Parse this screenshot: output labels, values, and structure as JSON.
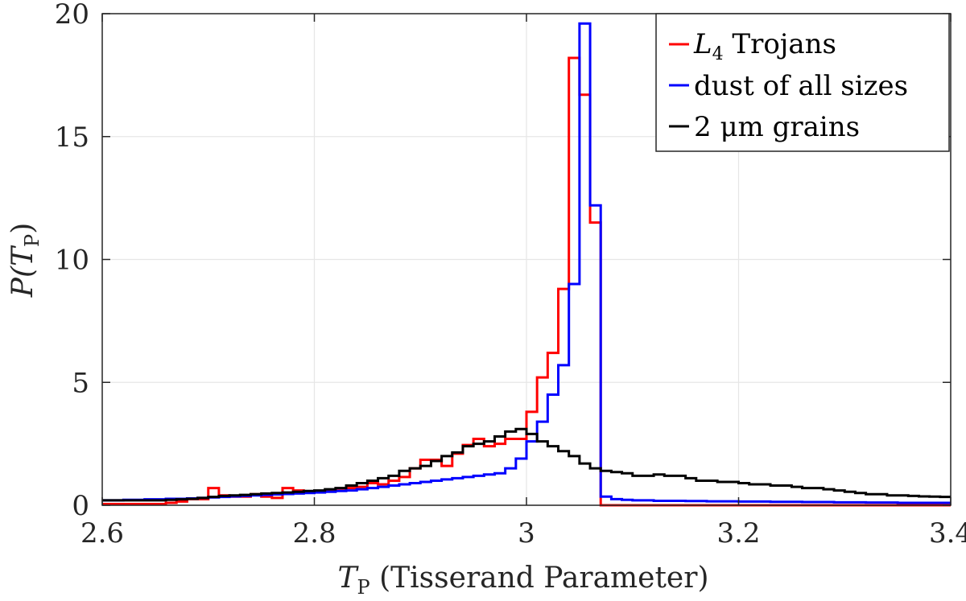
{
  "chart_data": {
    "type": "line",
    "subtype": "step-histogram",
    "title": "",
    "xlabel": "T_P (Tisserand Parameter)",
    "xlabel_parts": {
      "symbol": "T",
      "sub": "P",
      "rest": " (Tisserand Parameter)"
    },
    "ylabel": "P(T_P)",
    "ylabel_parts": {
      "prefix": "P(",
      "symbol": "T",
      "sub": "P",
      "suffix": ")"
    },
    "xlim": [
      2.6,
      3.4
    ],
    "ylim": [
      0,
      20
    ],
    "xticks": [
      2.6,
      2.8,
      3.0,
      3.2,
      3.4
    ],
    "xtick_labels": [
      "2.6",
      "2.8",
      "3",
      "3.2",
      "3.4"
    ],
    "yticks": [
      0,
      5,
      10,
      15,
      20
    ],
    "ytick_labels": [
      "0",
      "5",
      "10",
      "15",
      "20"
    ],
    "grid": true,
    "legend_position": "top-right",
    "bin_width": 0.01,
    "bin_edges_start": 2.6,
    "series": [
      {
        "name": "L4 Trojans",
        "legend_parts": {
          "symbol": "L",
          "sub": "4",
          "rest": " Trojans"
        },
        "color": "#ff0000",
        "values": [
          0.05,
          0.05,
          0.05,
          0.05,
          0.05,
          0.05,
          0.1,
          0.15,
          0.25,
          0.25,
          0.7,
          0.4,
          0.35,
          0.35,
          0.45,
          0.35,
          0.3,
          0.7,
          0.6,
          0.55,
          0.55,
          0.6,
          0.6,
          0.7,
          0.75,
          0.9,
          0.85,
          1.0,
          1.15,
          1.5,
          1.85,
          1.85,
          1.6,
          2.1,
          2.45,
          2.7,
          2.4,
          2.5,
          2.7,
          2.7,
          3.8,
          5.2,
          6.2,
          8.8,
          18.2,
          16.7,
          11.5,
          0.0,
          0.0,
          0.0,
          0.0,
          0.0,
          0.0,
          0.0,
          0.0,
          0.0,
          0.0,
          0.0,
          0.0,
          0.0,
          0.0,
          0.0,
          0.0,
          0.0,
          0.0,
          0.0,
          0.0,
          0.0,
          0.0,
          0.0,
          0.0,
          0.0,
          0.0,
          0.0,
          0.0,
          0.0,
          0.0,
          0.0,
          0.0,
          0.0
        ]
      },
      {
        "name": "dust of all sizes",
        "legend_parts": {
          "symbol": "",
          "sub": "",
          "rest": "dust of all sizes"
        },
        "color": "#0000ff",
        "values": [
          0.2,
          0.2,
          0.22,
          0.22,
          0.24,
          0.24,
          0.26,
          0.26,
          0.28,
          0.3,
          0.32,
          0.34,
          0.36,
          0.38,
          0.4,
          0.42,
          0.44,
          0.46,
          0.48,
          0.5,
          0.52,
          0.55,
          0.58,
          0.6,
          0.65,
          0.7,
          0.75,
          0.8,
          0.85,
          0.9,
          0.95,
          1.0,
          1.05,
          1.1,
          1.15,
          1.2,
          1.25,
          1.3,
          1.5,
          1.9,
          2.6,
          3.4,
          4.5,
          5.7,
          9.0,
          19.6,
          12.2,
          0.35,
          0.25,
          0.22,
          0.2,
          0.2,
          0.18,
          0.18,
          0.18,
          0.17,
          0.17,
          0.16,
          0.16,
          0.16,
          0.15,
          0.15,
          0.15,
          0.14,
          0.14,
          0.14,
          0.13,
          0.13,
          0.13,
          0.12,
          0.12,
          0.12,
          0.11,
          0.11,
          0.11,
          0.1,
          0.1,
          0.1,
          0.1,
          0.1
        ]
      },
      {
        "name": "2 μm grains",
        "legend_parts": {
          "symbol": "",
          "sub": "",
          "rest": "2 μm grains"
        },
        "color": "#000000",
        "values": [
          0.2,
          0.2,
          0.2,
          0.2,
          0.2,
          0.2,
          0.22,
          0.24,
          0.26,
          0.3,
          0.34,
          0.38,
          0.4,
          0.42,
          0.45,
          0.48,
          0.5,
          0.52,
          0.55,
          0.58,
          0.6,
          0.65,
          0.7,
          0.8,
          0.9,
          1.0,
          1.1,
          1.2,
          1.4,
          1.5,
          1.6,
          1.8,
          2.0,
          2.15,
          2.4,
          2.5,
          2.6,
          2.8,
          3.0,
          3.1,
          2.9,
          2.6,
          2.4,
          2.2,
          2.0,
          1.7,
          1.5,
          1.4,
          1.35,
          1.3,
          1.2,
          1.2,
          1.25,
          1.2,
          1.2,
          1.1,
          1.0,
          1.0,
          0.95,
          0.95,
          0.9,
          0.85,
          0.85,
          0.8,
          0.8,
          0.75,
          0.7,
          0.7,
          0.65,
          0.6,
          0.55,
          0.5,
          0.45,
          0.45,
          0.4,
          0.4,
          0.38,
          0.36,
          0.35,
          0.34
        ]
      }
    ]
  }
}
